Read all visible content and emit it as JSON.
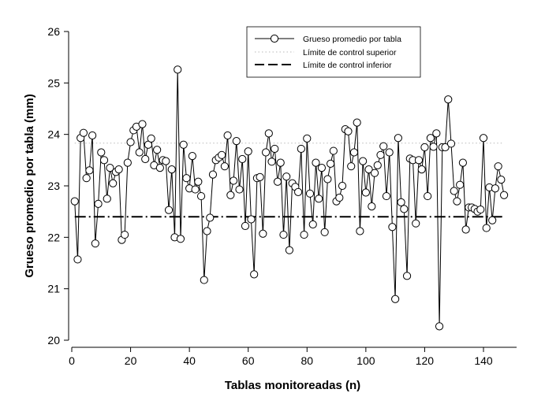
{
  "chart_data": {
    "type": "line",
    "title": "",
    "xlabel": "Tablas monitoreadas (n)",
    "ylabel": "Grueso promedio por tabla (mm)",
    "xlim": [
      0,
      151
    ],
    "ylim": [
      20,
      26
    ],
    "xticks": [
      0,
      20,
      40,
      60,
      80,
      100,
      120,
      140
    ],
    "yticks": [
      20,
      21,
      22,
      23,
      24,
      25,
      26
    ],
    "grid": false,
    "legend_position": "top-right",
    "series": [
      {
        "name": "Grueso promedio por tabla",
        "style": "line-with-open-circles",
        "x": [
          1,
          2,
          3,
          4,
          5,
          6,
          7,
          8,
          9,
          10,
          11,
          12,
          13,
          14,
          15,
          16,
          17,
          18,
          19,
          20,
          21,
          22,
          23,
          24,
          25,
          26,
          27,
          28,
          29,
          30,
          31,
          32,
          33,
          34,
          35,
          36,
          37,
          38,
          39,
          40,
          41,
          42,
          43,
          44,
          45,
          46,
          47,
          48,
          49,
          50,
          51,
          52,
          53,
          54,
          55,
          56,
          57,
          58,
          59,
          60,
          61,
          62,
          63,
          64,
          65,
          66,
          67,
          68,
          69,
          70,
          71,
          72,
          73,
          74,
          75,
          76,
          77,
          78,
          79,
          80,
          81,
          82,
          83,
          84,
          85,
          86,
          87,
          88,
          89,
          90,
          91,
          92,
          93,
          94,
          95,
          96,
          97,
          98,
          99,
          100,
          101,
          102,
          103,
          104,
          105,
          106,
          107,
          108,
          109,
          110,
          111,
          112,
          113,
          114,
          115,
          116,
          117,
          118,
          119,
          120,
          121,
          122,
          123,
          124,
          125,
          126,
          127,
          128,
          129,
          130,
          131,
          132,
          133,
          134,
          135,
          136,
          137,
          138,
          139,
          140,
          141,
          142,
          143,
          144,
          145,
          146,
          147
        ],
        "values": [
          22.7,
          21.57,
          23.93,
          24.03,
          23.15,
          23.3,
          23.98,
          21.88,
          22.65,
          23.65,
          23.5,
          22.75,
          23.35,
          23.05,
          23.27,
          23.32,
          21.95,
          22.05,
          23.45,
          23.85,
          24.08,
          24.15,
          23.65,
          24.2,
          23.52,
          23.8,
          23.92,
          23.4,
          23.7,
          23.35,
          23.5,
          23.48,
          22.53,
          23.32,
          22.0,
          25.26,
          21.97,
          23.8,
          23.15,
          22.95,
          23.58,
          22.93,
          23.08,
          22.8,
          21.17,
          22.12,
          22.38,
          23.22,
          23.5,
          23.55,
          23.6,
          23.38,
          23.98,
          22.82,
          23.1,
          23.87,
          22.93,
          23.52,
          22.22,
          23.67,
          22.35,
          21.28,
          23.15,
          23.17,
          22.07,
          23.65,
          24.02,
          23.47,
          23.72,
          23.08,
          23.45,
          22.05,
          23.18,
          21.75,
          23.05,
          22.98,
          22.88,
          23.72,
          22.05,
          23.92,
          22.85,
          22.25,
          23.45,
          22.75,
          23.35,
          22.1,
          23.13,
          23.43,
          23.68,
          22.7,
          22.77,
          23.0,
          24.1,
          24.06,
          23.38,
          23.65,
          24.23,
          22.12,
          23.48,
          22.87,
          23.32,
          22.6,
          23.25,
          23.4,
          23.6,
          23.77,
          22.8,
          23.65,
          22.2,
          20.8,
          23.93,
          22.68,
          22.55,
          21.25,
          23.53,
          23.5,
          22.27,
          23.5,
          23.32,
          23.75,
          22.8,
          23.93,
          23.76,
          24.02,
          20.27,
          23.75,
          23.75,
          24.68,
          23.82,
          22.9,
          22.7,
          23.02,
          23.45,
          22.15,
          22.58,
          22.58,
          22.55,
          22.5,
          22.54,
          23.93,
          22.18,
          22.97,
          22.33,
          22.95,
          23.38,
          23.12,
          22.82
        ]
      },
      {
        "name": "Límite de control superior",
        "style": "dotted",
        "values": [
          23.83
        ]
      },
      {
        "name": "Límite de control inferior",
        "style": "dash-dot",
        "values": [
          22.4
        ]
      }
    ],
    "colors": {
      "line": "#000000",
      "upper_limit": "#b8b8b8",
      "lower_limit": "#000000",
      "marker_fill": "#ffffff"
    }
  }
}
